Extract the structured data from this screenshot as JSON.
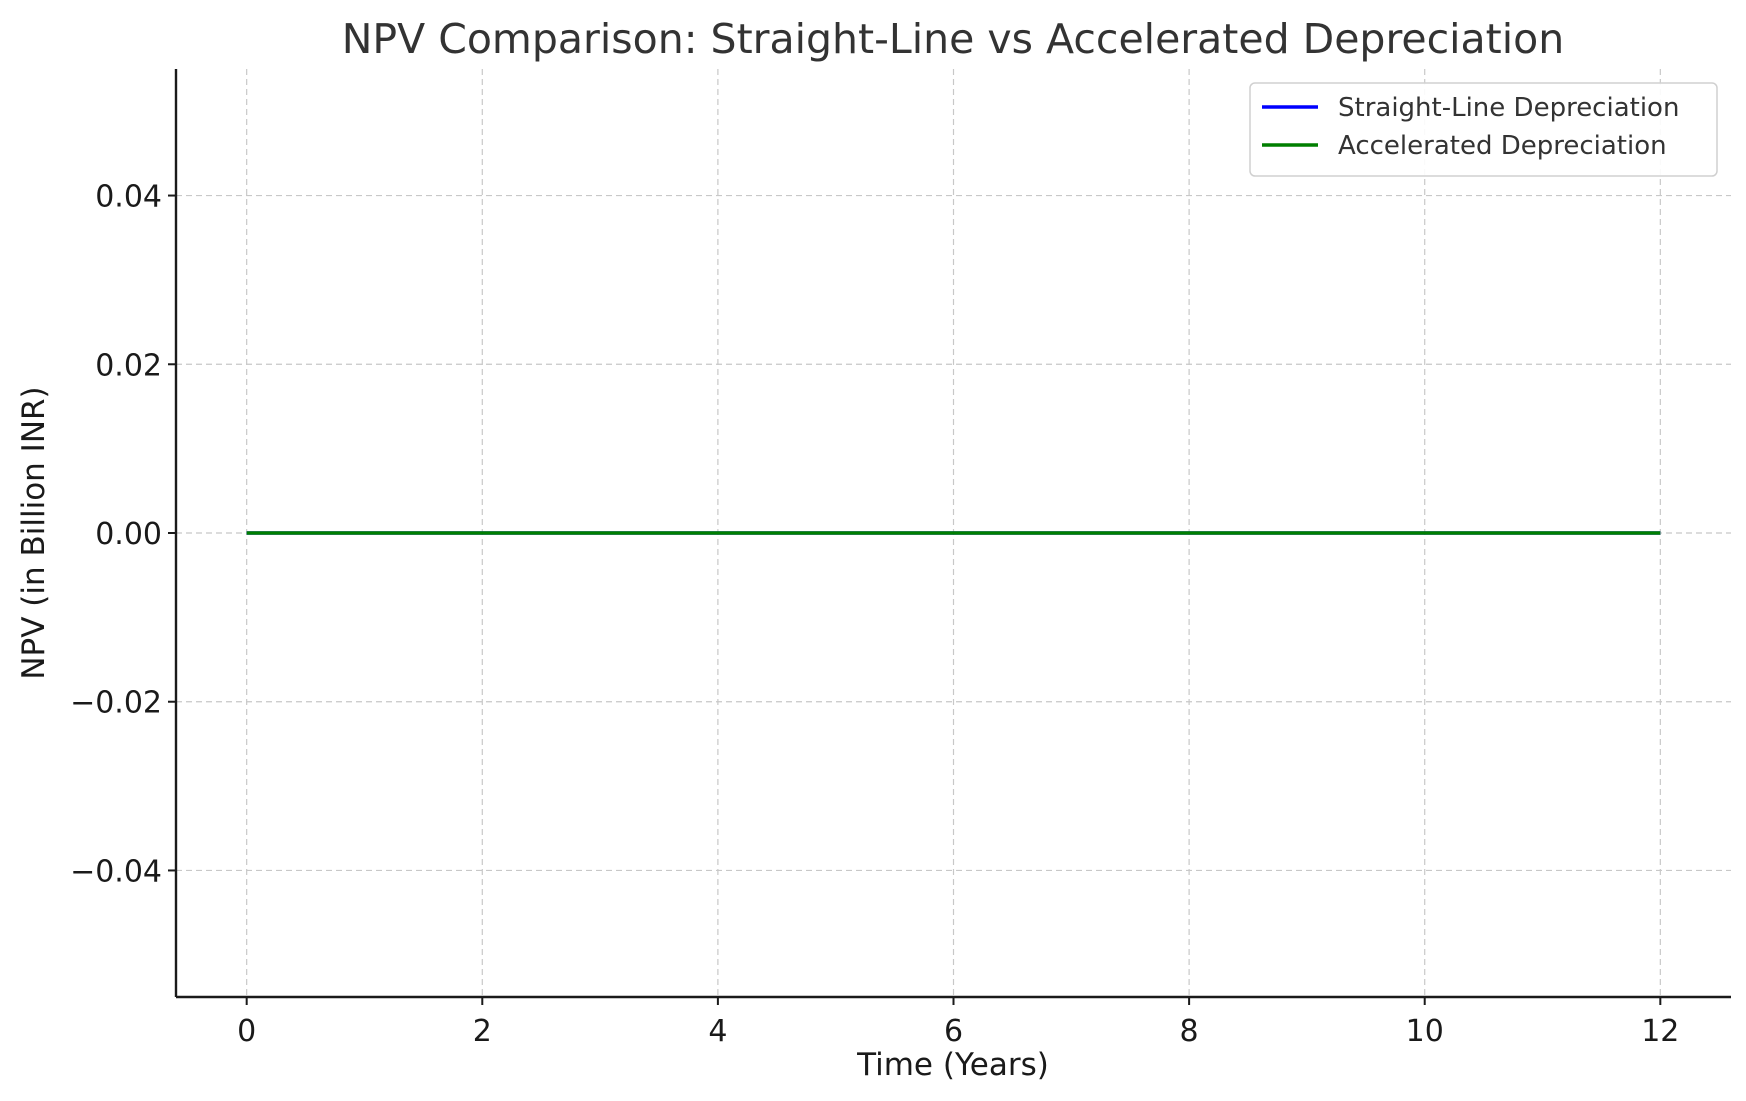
{
  "chart_data": {
    "type": "line",
    "title": "NPV Comparison: Straight-Line vs Accelerated Depreciation",
    "xlabel": "Time (Years)",
    "ylabel": "NPV (in Billion INR)",
    "xlim": [
      -0.6,
      12.6
    ],
    "ylim": [
      -0.055,
      0.055
    ],
    "xticks": [
      0,
      2,
      4,
      6,
      8,
      10,
      12
    ],
    "xtick_labels": [
      "0",
      "2",
      "4",
      "6",
      "8",
      "10",
      "12"
    ],
    "yticks": [
      0.04,
      0.02,
      0.0,
      -0.02,
      -0.04
    ],
    "ytick_labels": [
      "0.04",
      "0.02",
      "0.00",
      "−0.02",
      "−0.04"
    ],
    "grid": true,
    "legend_position": "top-right",
    "x": [
      0,
      1,
      2,
      3,
      4,
      5,
      6,
      7,
      8,
      9,
      10,
      11,
      12
    ],
    "series": [
      {
        "name": "Straight-Line Depreciation",
        "color": "#0000ff",
        "values": [
          0,
          0,
          0,
          0,
          0,
          0,
          0,
          0,
          0,
          0,
          0,
          0,
          0
        ]
      },
      {
        "name": "Accelerated Depreciation",
        "color": "#007f00",
        "values": [
          0,
          0,
          0,
          0,
          0,
          0,
          0,
          0,
          0,
          0,
          0,
          0,
          0
        ]
      }
    ]
  }
}
